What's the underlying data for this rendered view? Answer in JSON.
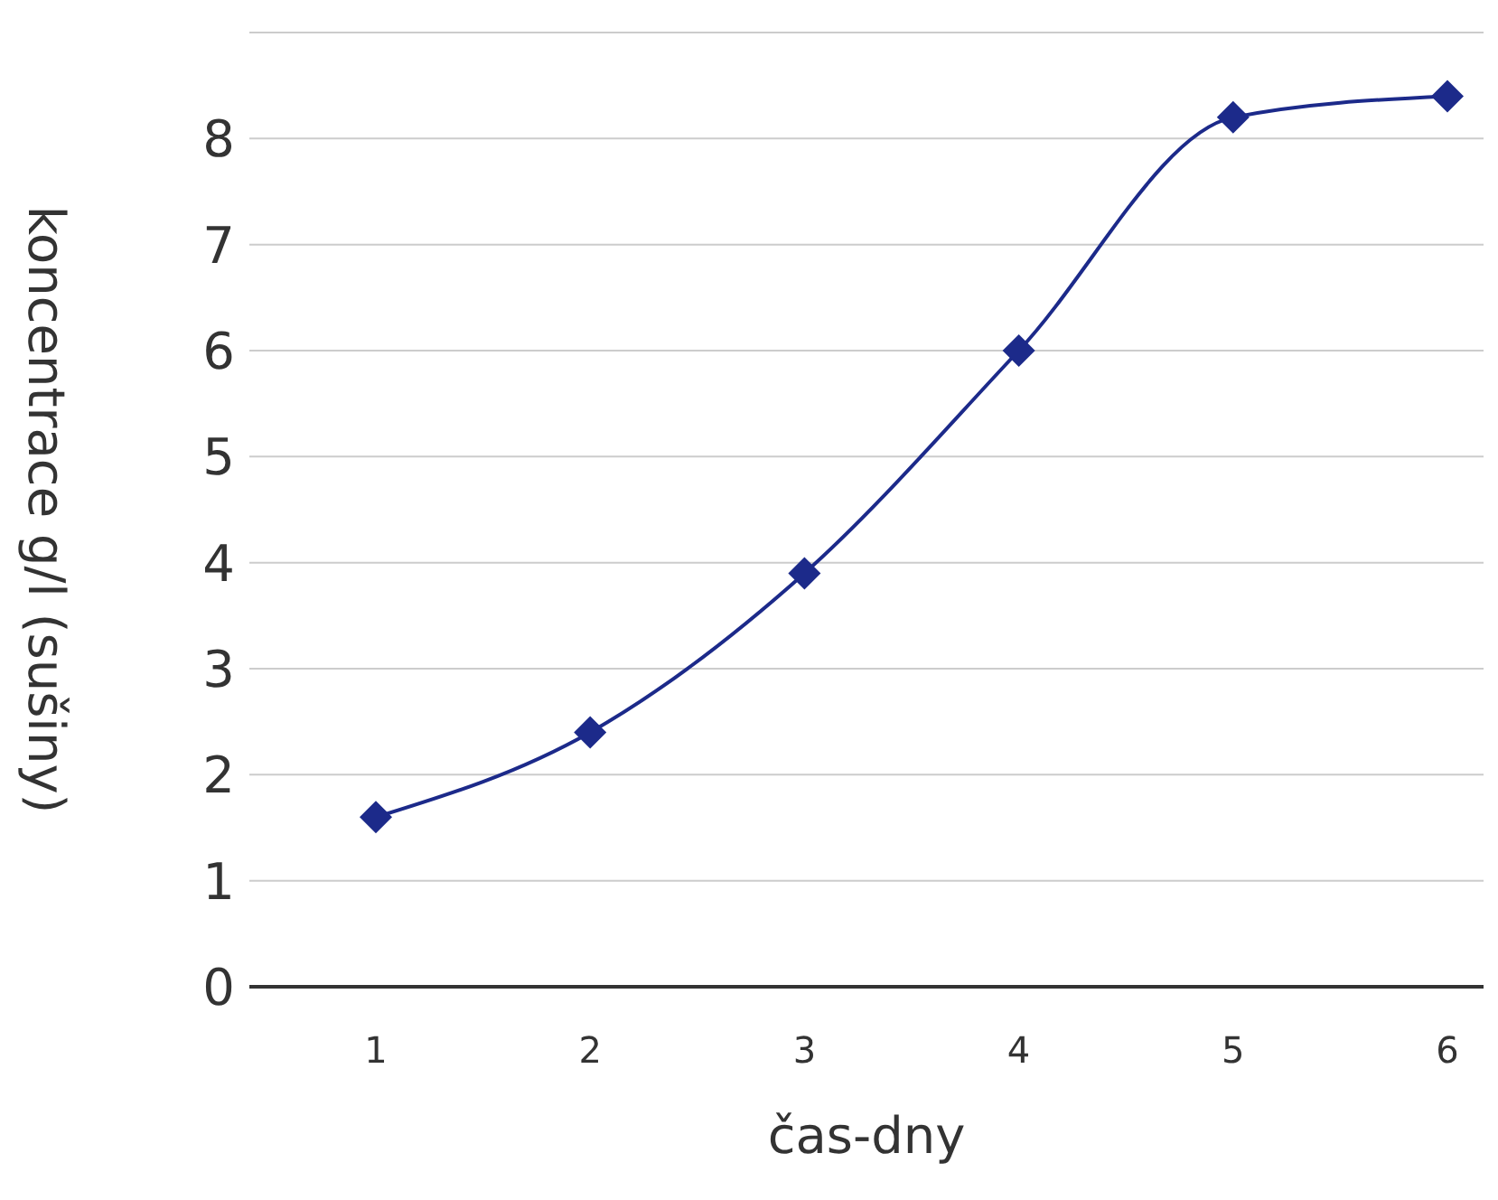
{
  "chart_data": {
    "type": "line",
    "xlabel": "čas-dny",
    "ylabel": "koncentrace g/l (sušiny)",
    "categories": [
      "1",
      "2",
      "3",
      "4",
      "5",
      "6"
    ],
    "series": [
      {
        "color": "#1c2a8a",
        "values": [
          1.6,
          2.4,
          3.9,
          6.0,
          8.2,
          8.4
        ]
      }
    ],
    "ylim": [
      0,
      9
    ],
    "yticks": [
      0,
      1,
      2,
      3,
      4,
      5,
      6,
      7,
      8,
      {
        "value": 9,
        "label": null
      }
    ],
    "grid": "y",
    "marker": "diamond",
    "line_style": "solid"
  }
}
